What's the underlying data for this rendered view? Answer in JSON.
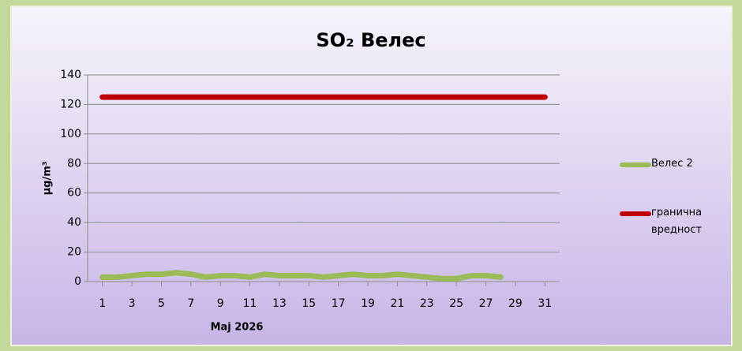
{
  "chart_data": {
    "type": "line",
    "title": "SO₂ Велес",
    "xlabel": "Мај 2026",
    "ylabel": "µg/m³",
    "x": [
      1,
      2,
      3,
      4,
      5,
      6,
      7,
      8,
      9,
      10,
      11,
      12,
      13,
      14,
      15,
      16,
      17,
      18,
      19,
      20,
      21,
      22,
      23,
      24,
      25,
      26,
      27,
      28,
      29,
      30,
      31
    ],
    "xlim": [
      0,
      32
    ],
    "xticks": [
      1,
      3,
      5,
      7,
      9,
      11,
      13,
      15,
      17,
      19,
      21,
      23,
      25,
      27,
      29,
      31
    ],
    "ylim": [
      0,
      140
    ],
    "yticks": [
      0,
      20,
      40,
      60,
      80,
      100,
      120,
      140
    ],
    "grid": true,
    "legend": "right",
    "series": [
      {
        "name": "Велес 2",
        "color": "#9bbb59",
        "values": [
          3,
          3,
          4,
          5,
          5,
          6,
          5,
          3,
          4,
          4,
          3,
          5,
          4,
          4,
          4,
          3,
          4,
          5,
          4,
          4,
          5,
          4,
          3,
          2,
          2,
          4,
          4,
          3,
          null,
          null,
          null
        ]
      },
      {
        "name": "гранична вредност",
        "color": "#c0000b",
        "values": [
          125,
          125,
          125,
          125,
          125,
          125,
          125,
          125,
          125,
          125,
          125,
          125,
          125,
          125,
          125,
          125,
          125,
          125,
          125,
          125,
          125,
          125,
          125,
          125,
          125,
          125,
          125,
          125,
          125,
          125,
          125
        ]
      }
    ]
  }
}
